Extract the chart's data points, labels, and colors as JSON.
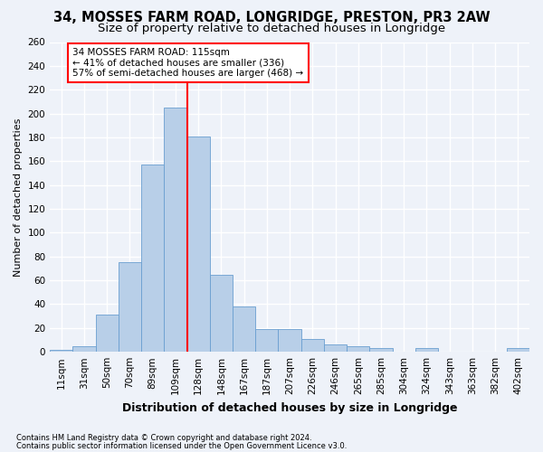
{
  "title": "34, MOSSES FARM ROAD, LONGRIDGE, PRESTON, PR3 2AW",
  "subtitle": "Size of property relative to detached houses in Longridge",
  "xlabel": "Distribution of detached houses by size in Longridge",
  "ylabel": "Number of detached properties",
  "bar_labels": [
    "11sqm",
    "31sqm",
    "50sqm",
    "70sqm",
    "89sqm",
    "109sqm",
    "128sqm",
    "148sqm",
    "167sqm",
    "187sqm",
    "207sqm",
    "226sqm",
    "246sqm",
    "265sqm",
    "285sqm",
    "304sqm",
    "324sqm",
    "343sqm",
    "363sqm",
    "382sqm",
    "402sqm"
  ],
  "bar_heights": [
    2,
    5,
    31,
    75,
    157,
    205,
    181,
    65,
    38,
    19,
    19,
    11,
    6,
    5,
    3,
    0,
    3,
    0,
    0,
    0,
    3
  ],
  "bar_color": "#b8cfe8",
  "bar_edge_color": "#6a9fd0",
  "vline_x_index": 6,
  "vline_color": "red",
  "annotation_text": "34 MOSSES FARM ROAD: 115sqm\n← 41% of detached houses are smaller (336)\n57% of semi-detached houses are larger (468) →",
  "annotation_box_color": "white",
  "annotation_box_edge_color": "red",
  "footnote1": "Contains HM Land Registry data © Crown copyright and database right 2024.",
  "footnote2": "Contains public sector information licensed under the Open Government Licence v3.0.",
  "ylim": [
    0,
    260
  ],
  "yticks": [
    0,
    20,
    40,
    60,
    80,
    100,
    120,
    140,
    160,
    180,
    200,
    220,
    240,
    260
  ],
  "background_color": "#eef2f9",
  "grid_color": "#ffffff",
  "title_fontsize": 10.5,
  "subtitle_fontsize": 9.5,
  "xlabel_fontsize": 9,
  "ylabel_fontsize": 8,
  "tick_fontsize": 7.5,
  "annot_fontsize": 7.5,
  "footnote_fontsize": 6
}
